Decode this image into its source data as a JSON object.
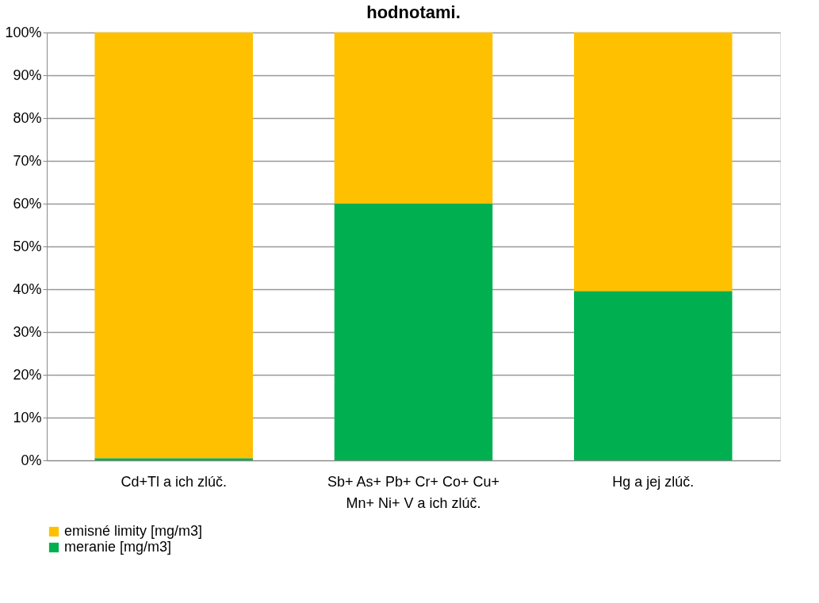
{
  "chart_data": {
    "type": "bar",
    "title": "hodnotami.",
    "stacked": true,
    "categories": [
      "Cd+Tl a ich zlúč.",
      "Sb+ As+ Pb+ Cr+ Co+ Cu+ Mn+ Ni+ V a ich zlúč.",
      "Hg a jej zlúč."
    ],
    "series": [
      {
        "name": "meranie [mg/m3]",
        "color": "#00b050",
        "values": [
          0.5,
          60,
          39.6
        ]
      },
      {
        "name": "emisné limity [mg/m3]",
        "color": "#ffc000",
        "values": [
          99.5,
          40,
          60.4
        ]
      }
    ],
    "ylim": [
      0,
      100
    ],
    "yticks": [
      {
        "value": 0,
        "label": "0%"
      },
      {
        "value": 10,
        "label": "10%"
      },
      {
        "value": 20,
        "label": "20%"
      },
      {
        "value": 30,
        "label": "30%"
      },
      {
        "value": 40,
        "label": "40%"
      },
      {
        "value": 50,
        "label": "50%"
      },
      {
        "value": 60,
        "label": "60%"
      },
      {
        "value": 70,
        "label": "70%"
      },
      {
        "value": 80,
        "label": "80%"
      },
      {
        "value": 90,
        "label": "90%"
      },
      {
        "value": 100,
        "label": "100%"
      }
    ],
    "grid": "y",
    "legend": "bottom"
  }
}
